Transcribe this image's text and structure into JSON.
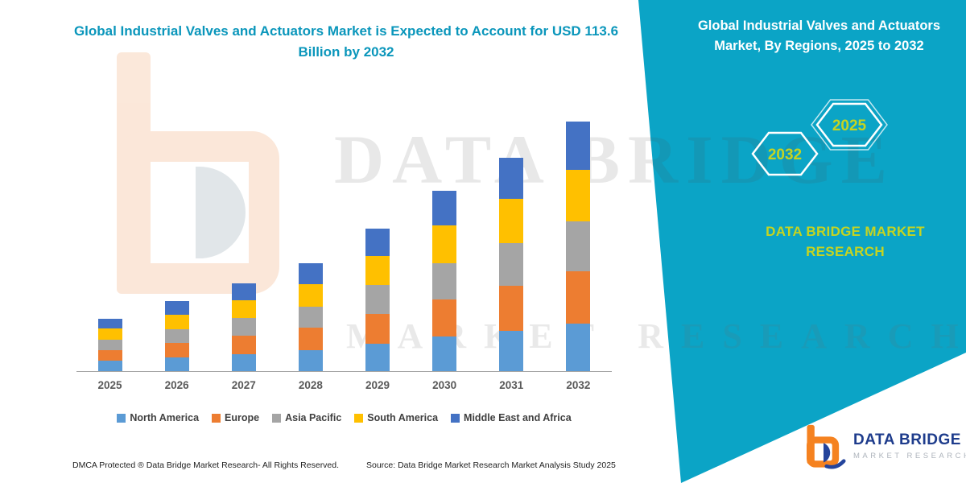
{
  "colors": {
    "teal_panel": "#0BA4C6",
    "title_teal": "#0A96BB",
    "accent_yellow_green": "#C6D420",
    "axis_gray": "#A6A6A6",
    "xlabel_gray": "#595959",
    "legend_text": "#404040",
    "logo_navy": "#1E3C8C",
    "logo_orange": "#F58220"
  },
  "left_panel": {
    "title": "Global Industrial Valves and Actuators Market is Expected to Account for USD 113.6 Billion by 2032"
  },
  "right_panel": {
    "title": "Global Industrial Valves and Actuators Market, By Regions, 2025 to 2032",
    "hexagon_years": [
      "2032",
      "2025"
    ],
    "brand_text": "DATA BRIDGE MARKET RESEARCH"
  },
  "watermark": {
    "line1": "DATA BRIDGE",
    "line2": "MARKET RESEARCH"
  },
  "logo": {
    "name": "DATA BRIDGE",
    "tagline": "MARKET RESEARCH"
  },
  "footer": {
    "dmca": "DMCA Protected ® Data Bridge Market Research-  All Rights Reserved.",
    "source": "Source: Data Bridge Market Research  Market Analysis Study 2025"
  },
  "chart_data": {
    "type": "bar",
    "stacked": true,
    "title": "Global Industrial Valves and Actuators Market is Expected to Account for USD 113.6 Billion by 2032",
    "unit": "USD Billion",
    "categories": [
      "2025",
      "2026",
      "2027",
      "2028",
      "2029",
      "2030",
      "2031",
      "2032"
    ],
    "series": [
      {
        "name": "North America",
        "color": "#5B9BD5",
        "values": [
          4.6,
          6.1,
          7.7,
          9.4,
          12.4,
          15.6,
          18.5,
          21.6
        ]
      },
      {
        "name": "Europe",
        "color": "#ED7D31",
        "values": [
          5.0,
          6.7,
          8.4,
          10.3,
          13.7,
          17.2,
          20.4,
          23.9
        ]
      },
      {
        "name": "Asia Pacific",
        "color": "#A5A5A5",
        "values": [
          4.8,
          6.4,
          8.0,
          9.8,
          13.0,
          16.4,
          19.4,
          22.7
        ]
      },
      {
        "name": "South America",
        "color": "#FFC000",
        "values": [
          5.0,
          6.6,
          8.3,
          10.2,
          13.5,
          17.0,
          20.2,
          23.6
        ]
      },
      {
        "name": "Middle East and Africa",
        "color": "#4472C4",
        "values": [
          4.6,
          6.2,
          7.6,
          9.3,
          12.4,
          15.8,
          18.5,
          21.8
        ]
      }
    ],
    "totals": [
      24.0,
      32.0,
      40.0,
      49.0,
      65.0,
      82.0,
      97.0,
      113.6
    ],
    "final_value_label": "USD 113.6 Billion by 2032",
    "ylim": [
      0,
      120
    ],
    "grid": false,
    "y_axis_shown": false,
    "legend_position": "bottom"
  }
}
